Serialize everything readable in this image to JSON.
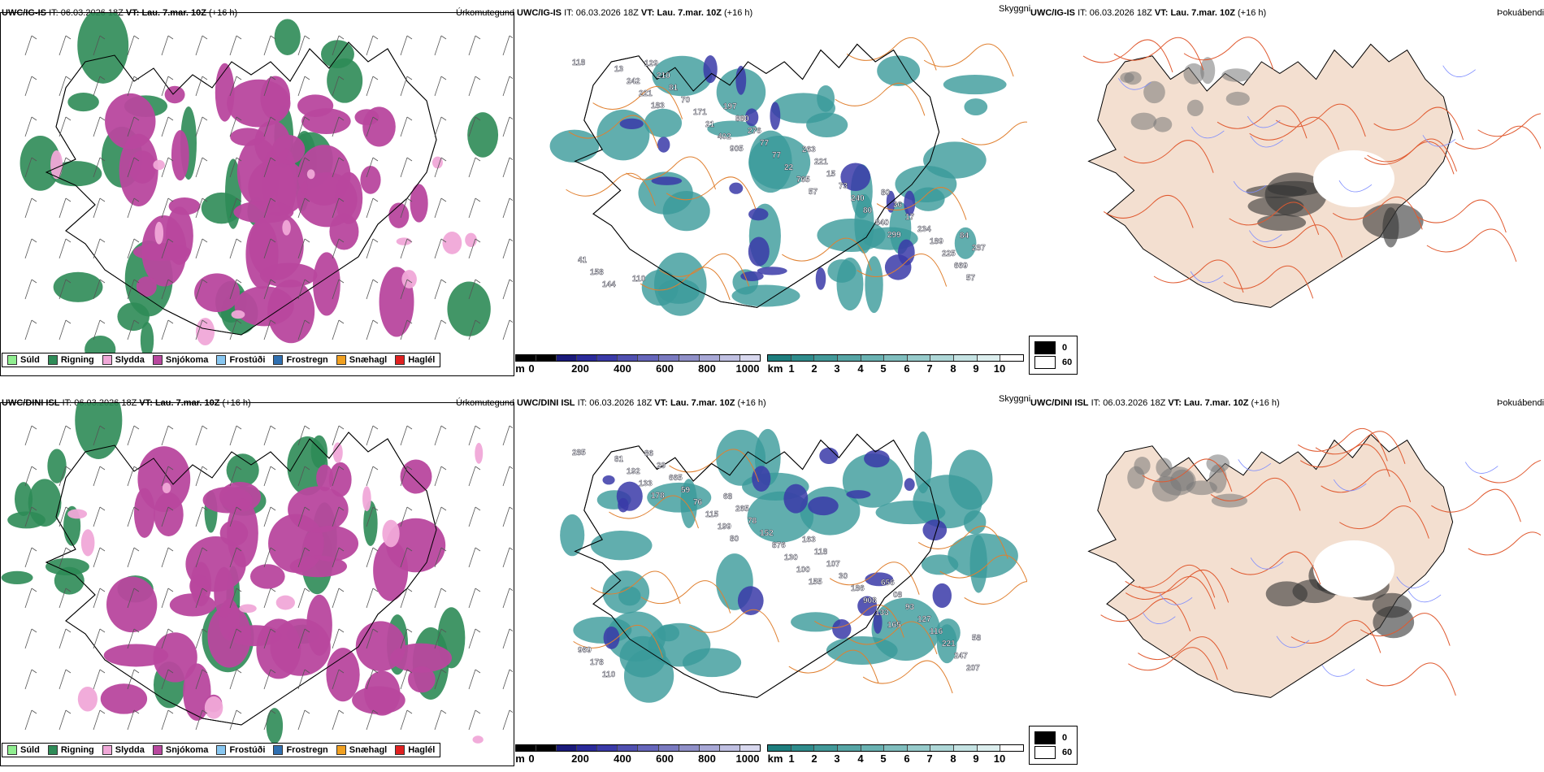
{
  "panels": [
    {
      "model": "UWC/IG-IS",
      "it_label": "IT:",
      "it": "06.03.2026 18Z",
      "vt_label": "VT:",
      "vt": "Lau. 7.mar. 10Z",
      "lead": "(+16 h)"
    },
    {
      "model": "UWC/DINI ISL",
      "it_label": "IT:",
      "it": "06.03.2026 18Z",
      "vt_label": "VT:",
      "vt": "Lau. 7.mar. 10Z",
      "lead": "(+16 h)"
    }
  ],
  "variables": {
    "precip_type": "Úrkomutegund",
    "cloud": "Skyggni",
    "fog": "Þokuábendi"
  },
  "precip_legend": [
    {
      "label": "Súld",
      "color": "#90ee90"
    },
    {
      "label": "Rigning",
      "color": "#2e8b57"
    },
    {
      "label": "Slydda",
      "color": "#f0a8d8"
    },
    {
      "label": "Snjókoma",
      "color": "#b8479e"
    },
    {
      "label": "Frostúði",
      "color": "#87c6f0"
    },
    {
      "label": "Frostregn",
      "color": "#2f6fb0"
    },
    {
      "label": "Snæhagl",
      "color": "#f0a020"
    },
    {
      "label": "Haglél",
      "color": "#e02020"
    }
  ],
  "cloud_base_scale": {
    "unit": "m",
    "ticks": [
      "0",
      "200",
      "400",
      "600",
      "800",
      "1000"
    ],
    "colors": [
      "#000000",
      "#1a1a7a",
      "#2a2a9a",
      "#3a3aa8",
      "#5050b0",
      "#6666bb",
      "#7a7ac0",
      "#9090c8",
      "#a8a8d6",
      "#c0c0e2",
      "#d8d8ee"
    ]
  },
  "visibility_scale": {
    "unit": "km",
    "ticks": [
      "1",
      "2",
      "3",
      "4",
      "5",
      "6",
      "7",
      "8",
      "9",
      "10"
    ],
    "colors": [
      "#1e7e7e",
      "#2f8c8c",
      "#429999",
      "#56a5a5",
      "#6ab2b2",
      "#80bebe",
      "#97cbcb",
      "#aed7d7",
      "#c5e3e3",
      "#dceeee"
    ]
  },
  "fog_legend": [
    {
      "label": "0",
      "color": "#000000"
    },
    {
      "label": "60",
      "color": "#ffffff"
    }
  ],
  "cloud_labels_top": [
    "118",
    "183",
    "905",
    "57",
    "299",
    "57",
    "221",
    "402",
    "765",
    "840",
    "669",
    "242",
    "21",
    "22",
    "80",
    "225",
    "13",
    "171",
    "77",
    "240",
    "189",
    "144",
    "70",
    "77",
    "73",
    "234",
    "158",
    "81",
    "276",
    "15",
    "17",
    "41",
    "210",
    "880",
    "221",
    "36",
    "287",
    "129",
    "197",
    "263",
    "80",
    "84",
    "110"
  ],
  "cloud_labels_bottom": [
    "285",
    "178",
    "80",
    "155",
    "165",
    "207",
    "133",
    "199",
    "100",
    "133",
    "247",
    "192",
    "115",
    "130",
    "908",
    "221",
    "81",
    "76",
    "876",
    "186",
    "116",
    "110",
    "59",
    "152",
    "30",
    "127",
    "178",
    "665",
    "78",
    "107",
    "93",
    "969",
    "29",
    "265",
    "118",
    "08",
    "58",
    "86",
    "68",
    "163",
    "656"
  ]
}
